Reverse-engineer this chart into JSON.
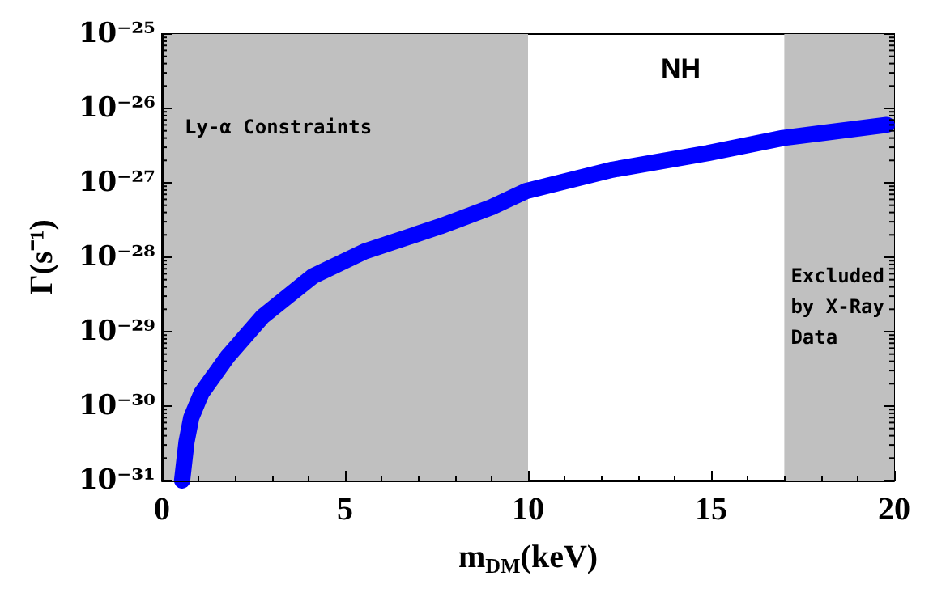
{
  "chart_data": {
    "type": "line",
    "xlabel": "m$_{DM}$(keV)",
    "ylabel": "Γ(s⁻¹)",
    "x": [
      0.55,
      0.67,
      0.8,
      1.08,
      1.79,
      2.75,
      4.13,
      5.54,
      7.6,
      9.0,
      9.96,
      12.3,
      14.9,
      16.96,
      19.8
    ],
    "series": [
      {
        "color": "#0000ff",
        "values": [
          1e-31,
          3.3e-31,
          7e-31,
          1.5e-30,
          4.6e-30,
          1.6e-29,
          5.6e-29,
          1.2e-28,
          2.6e-28,
          4.7e-28,
          7.8e-28,
          1.5e-27,
          2.5e-27,
          4e-27,
          6e-27
        ]
      }
    ],
    "log": "y",
    "xlim": [
      0,
      20
    ],
    "xticks": [
      0,
      5,
      10,
      15,
      20
    ],
    "ylim": [
      1e-31,
      1e-25
    ],
    "yticks": [
      {
        "value": 1e-31,
        "label": "10⁻³¹"
      },
      {
        "value": 1e-30,
        "label": "10⁻³⁰"
      },
      {
        "value": 1e-29,
        "label": "10⁻²⁹"
      },
      {
        "value": 1e-28,
        "label": "10⁻²⁸"
      },
      {
        "value": 1e-27,
        "label": "10⁻²⁷"
      },
      {
        "value": 1e-26,
        "label": "10⁻²⁶"
      },
      {
        "value": 1e-25,
        "label": "10⁻²⁵"
      }
    ],
    "bands": [
      {
        "axis": "x",
        "from": 0,
        "to": 10,
        "label": "Ly-α Constraints",
        "color": "#c0c0c0"
      },
      {
        "axis": "x",
        "from": 17,
        "to": 20,
        "label": "Excluded by X-Ray Data",
        "color": "#c0c0c0"
      }
    ],
    "annotations": [
      "NH"
    ],
    "line_style": "solid"
  }
}
